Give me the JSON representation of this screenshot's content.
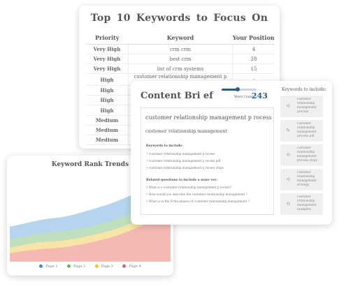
{
  "keyword_table": {
    "title": "Top 10  Keywords to  Focus On",
    "headers": [
      "Priority",
      "Keyword",
      "Your Position"
    ],
    "rows": [
      {
        "priority": "Very High",
        "level": "very-high",
        "keyword": "crm crm",
        "position": "4"
      },
      {
        "priority": "Very High",
        "level": "very-high",
        "keyword": "best crm",
        "position": "28"
      },
      {
        "priority": "Very High",
        "level": "very-high",
        "keyword": "list of crm systems",
        "position": "15"
      },
      {
        "priority": "High",
        "level": "high",
        "keyword": "customer  relationship management p    rocess",
        "position": "-"
      },
      {
        "priority": "High",
        "level": "high",
        "keyword": "",
        "position": ""
      },
      {
        "priority": "High",
        "level": "high",
        "keyword": "",
        "position": ""
      },
      {
        "priority": "High",
        "level": "high",
        "keyword": "",
        "position": ""
      },
      {
        "priority": "Medium",
        "level": "medium",
        "keyword": "",
        "position": ""
      },
      {
        "priority": "Medium",
        "level": "medium",
        "keyword": "",
        "position": ""
      },
      {
        "priority": "Medium",
        "level": "medium",
        "keyword": "",
        "position": ""
      }
    ]
  },
  "rank_trends": {
    "title": "Keyword Rank Trends",
    "legend": [
      {
        "label": "Page 1",
        "color": "#3d8ad0"
      },
      {
        "label": "Page 2",
        "color": "#5cb85c"
      },
      {
        "label": "Page 3",
        "color": "#f0c420"
      },
      {
        "label": "Page 4",
        "color": "#e06060"
      }
    ]
  },
  "content_brief": {
    "title": "Content Bri ef",
    "word_count_label": "Word Count:",
    "word_count_value": "243",
    "main_keyword": "customer  relationship management p     rocess",
    "sub_keyword": "customer  relationship management",
    "keywords_heading": "Keywords to include:",
    "keywords": [
      "• customer  relationship management p     rocess",
      "• customer  relationship management p     rocess pdf",
      "• customer  relationship management p     rocess steps"
    ],
    "questions_heading": "Related questions to include  a nswe ver:",
    "questions": [
      "• What is a  customer  relationship management p      rocess?",
      "• How would you describe the  customer  relationship management     ?",
      "• What is in the B  the phases   of customer  relationship management    ?"
    ],
    "side_heading": "Keywords to include:",
    "side_items": [
      "customer relationship management process",
      "customer relationship management process pdf",
      "customer relationship management process steps",
      "customer relationship management strategy",
      "customer relationship management examples"
    ]
  },
  "colors": {
    "very_high": "#cc3b2b",
    "high": "#cc3b2b",
    "medium": "#e29a2a",
    "accent": "#2c5a8a"
  }
}
